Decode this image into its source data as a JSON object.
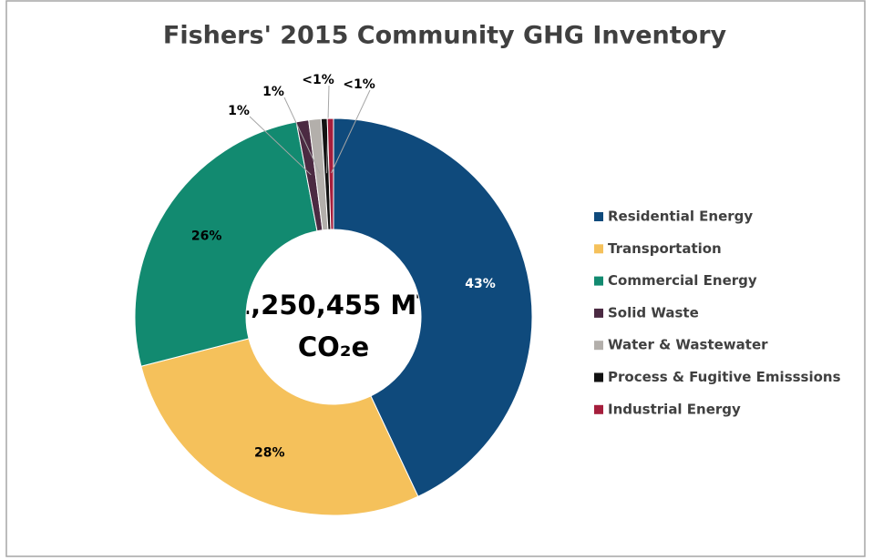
{
  "chart_data": {
    "type": "donut",
    "title": "Fishers' 2015 Community GHG Inventory",
    "center_label": [
      "1,250,455 MT",
      "CO₂e"
    ],
    "categories": [
      "Residential Energy",
      "Transportation",
      "Commercial Energy",
      "Solid Waste",
      "Water & Wastewater",
      "Process & Fugitive Emisssions",
      "Industrial Energy"
    ],
    "values": [
      43,
      28,
      26,
      1,
      1,
      0.5,
      0.5
    ],
    "value_labels": [
      "43%",
      "28%",
      "26%",
      "1%",
      "1%",
      "<1%",
      "<1%"
    ],
    "colors": [
      "#0f4a7c",
      "#f5c15b",
      "#128a70",
      "#4b2a42",
      "#b3afab",
      "#121212",
      "#a51e3c"
    ],
    "legend": "right"
  }
}
